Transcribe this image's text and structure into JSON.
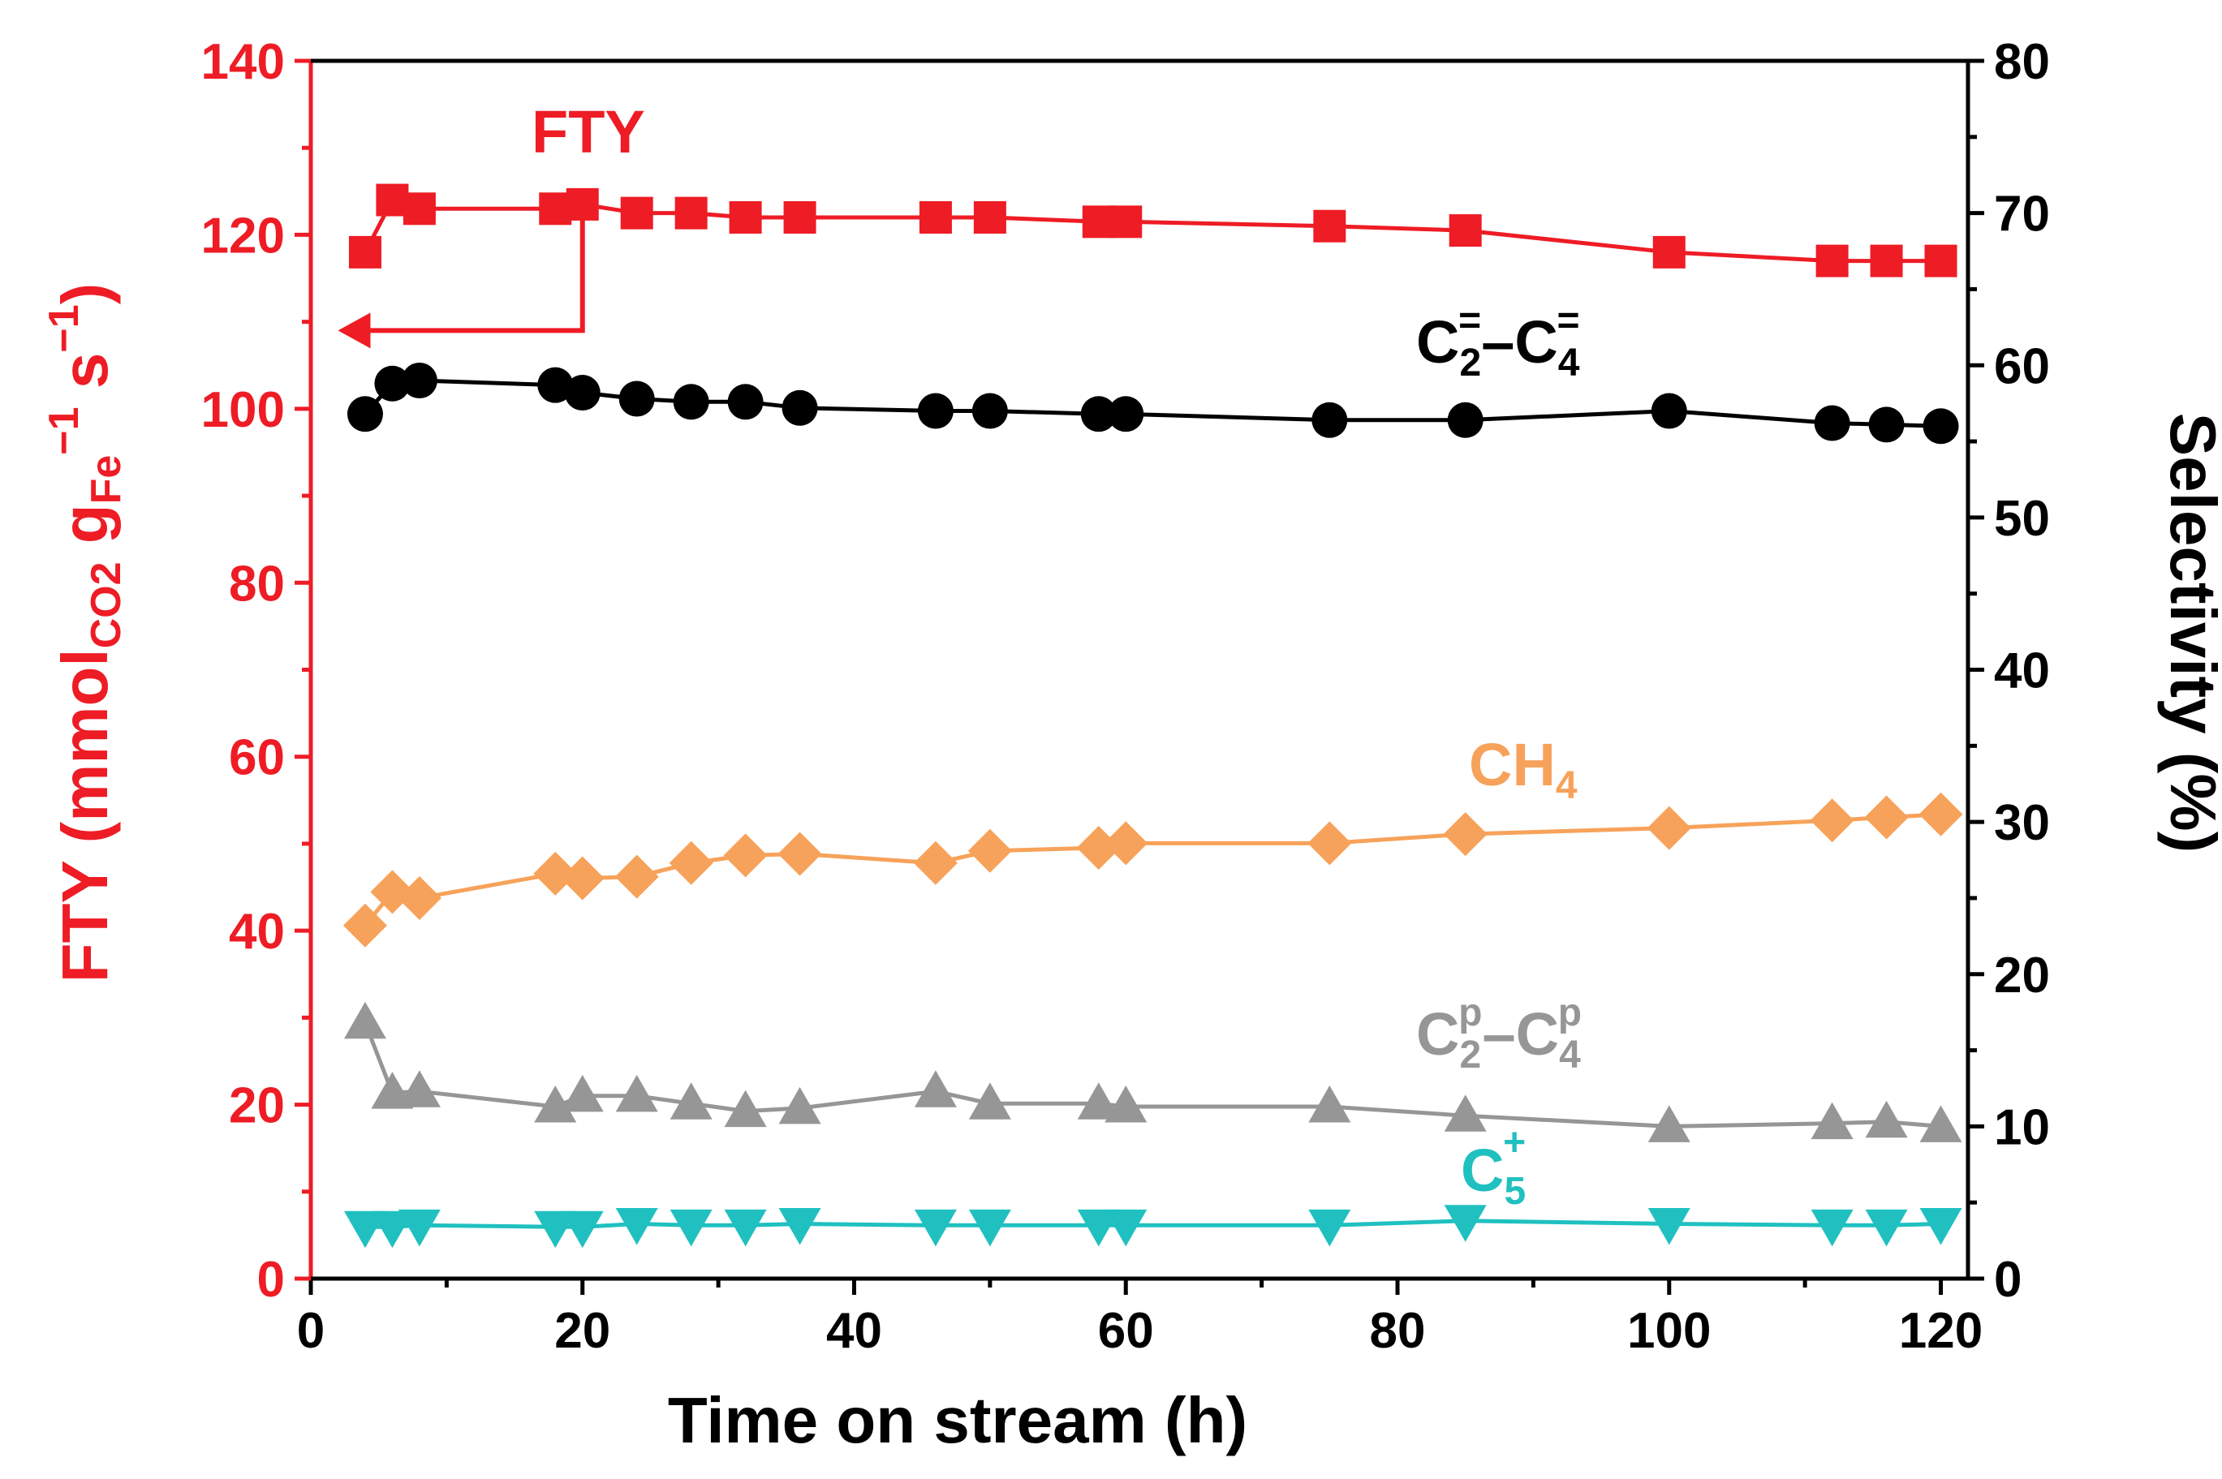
{
  "chart_data": {
    "type": "line",
    "xlabel": "Time on stream (h)",
    "xlim": [
      0,
      122
    ],
    "xticks": [
      0,
      20,
      40,
      60,
      80,
      100,
      120
    ],
    "ylim_left": [
      0,
      140
    ],
    "yticks_left": [
      0,
      20,
      40,
      60,
      80,
      100,
      120,
      140
    ],
    "ylabel_left": {
      "main": "FTY (mmol",
      "sub1": "CO2",
      "mid": " g",
      "sub2": "Fe",
      "sup": "−1",
      "tail1": " s",
      "sup2": "−1",
      "tail2": ")"
    },
    "ylim_right": [
      0,
      80
    ],
    "yticks_right": [
      0,
      10,
      20,
      30,
      40,
      50,
      60,
      70,
      80
    ],
    "ylabel_right": "Selectivity (%)",
    "colors": {
      "fty": "#ee1c25",
      "olefins": "#000000",
      "ch4": "#f7a25a",
      "paraffins": "#969696",
      "c5": "#20c0c0",
      "axis_left": "#ee1c25",
      "axis_right": "#000000"
    },
    "series": [
      {
        "key": "fty",
        "name": "FTY",
        "axis": "left",
        "marker": "square",
        "x": [
          4,
          6,
          8,
          18,
          20,
          24,
          28,
          32,
          36,
          46,
          50,
          58,
          60,
          75,
          85,
          100,
          112,
          116,
          120
        ],
        "y": [
          118,
          124,
          123,
          123,
          123.5,
          122.5,
          122.5,
          122,
          122,
          122,
          122,
          121.5,
          121.5,
          121,
          120.5,
          118,
          117,
          117,
          117
        ]
      },
      {
        "key": "olefins",
        "name": "C2=–C4=",
        "axis": "right",
        "marker": "circle",
        "x": [
          4,
          6,
          8,
          18,
          20,
          24,
          28,
          32,
          36,
          46,
          50,
          58,
          60,
          75,
          85,
          100,
          112,
          116,
          120
        ],
        "y": [
          56.8,
          58.8,
          59,
          58.7,
          58.2,
          57.8,
          57.6,
          57.6,
          57.2,
          57,
          57,
          56.8,
          56.8,
          56.4,
          56.4,
          57,
          56.2,
          56.1,
          56
        ]
      },
      {
        "key": "ch4",
        "name": "CH4",
        "axis": "right",
        "marker": "diamond",
        "x": [
          4,
          6,
          8,
          18,
          20,
          24,
          28,
          32,
          36,
          46,
          50,
          58,
          60,
          75,
          85,
          100,
          112,
          116,
          120
        ],
        "y": [
          23.2,
          25.4,
          25,
          26.6,
          26.3,
          26.4,
          27.3,
          27.8,
          27.9,
          27.3,
          28.1,
          28.3,
          28.6,
          28.6,
          29.2,
          29.6,
          30.1,
          30.3,
          30.5
        ]
      },
      {
        "key": "paraffins",
        "name": "C2p–C4p",
        "axis": "right",
        "marker": "triangle-up",
        "x": [
          4,
          6,
          8,
          18,
          20,
          24,
          28,
          32,
          36,
          46,
          50,
          58,
          60,
          75,
          85,
          100,
          112,
          116,
          120
        ],
        "y": [
          16.8,
          12.2,
          12.3,
          11.3,
          12,
          12,
          11.5,
          11,
          11.2,
          12.3,
          11.5,
          11.5,
          11.3,
          11.3,
          10.7,
          10,
          10.2,
          10.3,
          10
        ]
      },
      {
        "key": "c5",
        "name": "C5+",
        "axis": "right",
        "marker": "triangle-down",
        "x": [
          4,
          6,
          8,
          18,
          20,
          24,
          28,
          32,
          36,
          46,
          50,
          58,
          60,
          75,
          85,
          100,
          112,
          116,
          120
        ],
        "y": [
          3.4,
          3.4,
          3.5,
          3.4,
          3.4,
          3.6,
          3.5,
          3.5,
          3.6,
          3.5,
          3.5,
          3.5,
          3.5,
          3.5,
          3.8,
          3.6,
          3.5,
          3.5,
          3.6
        ]
      }
    ],
    "annotations": {
      "fty": "FTY",
      "olefins": {
        "base1": "C",
        "sub1": "2",
        "sup1": "=",
        "dash": "–C",
        "sub2": "4",
        "sup2": "="
      },
      "ch4": {
        "base": "CH",
        "sub": "4"
      },
      "paraffins": {
        "base1": "C",
        "sub1": "2",
        "sup1": "p",
        "dash": "–C",
        "sub2": "4",
        "sup2": "p"
      },
      "c5": {
        "base": "C",
        "sub": "5",
        "sup": "+"
      }
    },
    "arrow": {
      "from_x": 20,
      "from_y": 123.5,
      "elbow_y": 109,
      "to_x": 2,
      "points_to": "left axis"
    }
  }
}
